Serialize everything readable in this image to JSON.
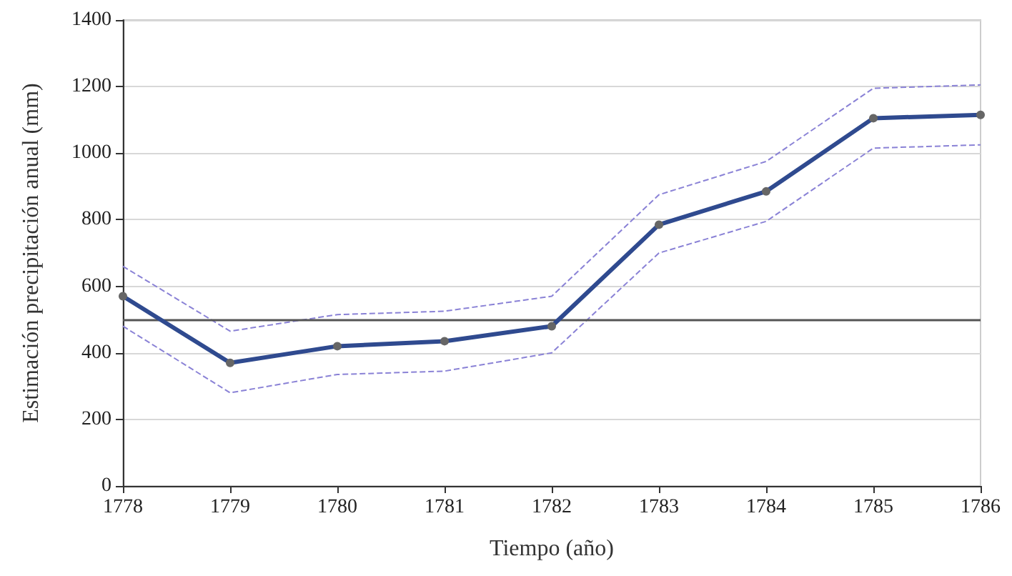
{
  "chart_data": {
    "type": "line",
    "xlabel": "Tiempo (año)",
    "ylabel": "Estimación precipitación anual (mm)",
    "x": [
      1778,
      1779,
      1780,
      1781,
      1782,
      1783,
      1784,
      1785,
      1786
    ],
    "series": [
      {
        "color": "#2f4a8f",
        "values": [
          570,
          370,
          420,
          435,
          480,
          785,
          885,
          1105,
          1115
        ],
        "marker": "circle",
        "line_style": "solid"
      },
      {
        "color": "#8a82d6",
        "values": [
          660,
          465,
          515,
          525,
          570,
          875,
          975,
          1195,
          1205
        ],
        "marker": "none",
        "line_style": "dashed"
      },
      {
        "color": "#8a82d6",
        "values": [
          480,
          280,
          335,
          345,
          400,
          700,
          795,
          1015,
          1025
        ],
        "marker": "none",
        "line_style": "dashed"
      }
    ],
    "xlim": [
      1778,
      1786
    ],
    "xticks": [
      1778,
      1779,
      1780,
      1781,
      1782,
      1783,
      1784,
      1785,
      1786
    ],
    "ylim": [
      0,
      1400
    ],
    "yticks": [
      0,
      200,
      400,
      600,
      800,
      1000,
      1200,
      1400
    ],
    "ref_lines": [
      {
        "axis": "y",
        "value": 500,
        "color": "#555555",
        "line_style": "solid"
      }
    ],
    "grid": "y"
  }
}
